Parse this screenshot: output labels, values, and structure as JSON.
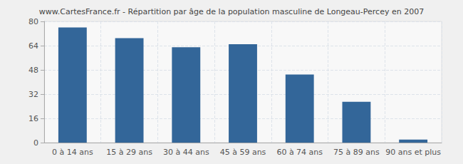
{
  "chart_data": {
    "type": "bar",
    "title": "www.CartesFrance.fr - Répartition par âge de la population masculine de Longeau-Percey en 2007",
    "categories": [
      "0 à 14 ans",
      "15 à 29 ans",
      "30 à 44 ans",
      "45 à 59 ans",
      "60 à 74 ans",
      "75 à 89 ans",
      "90 ans et plus"
    ],
    "values": [
      76,
      69,
      63,
      65,
      45,
      27,
      2
    ],
    "color": "#336699",
    "ylim": [
      0,
      80
    ],
    "yticks": [
      0,
      16,
      32,
      48,
      64,
      80
    ],
    "grid": true
  }
}
